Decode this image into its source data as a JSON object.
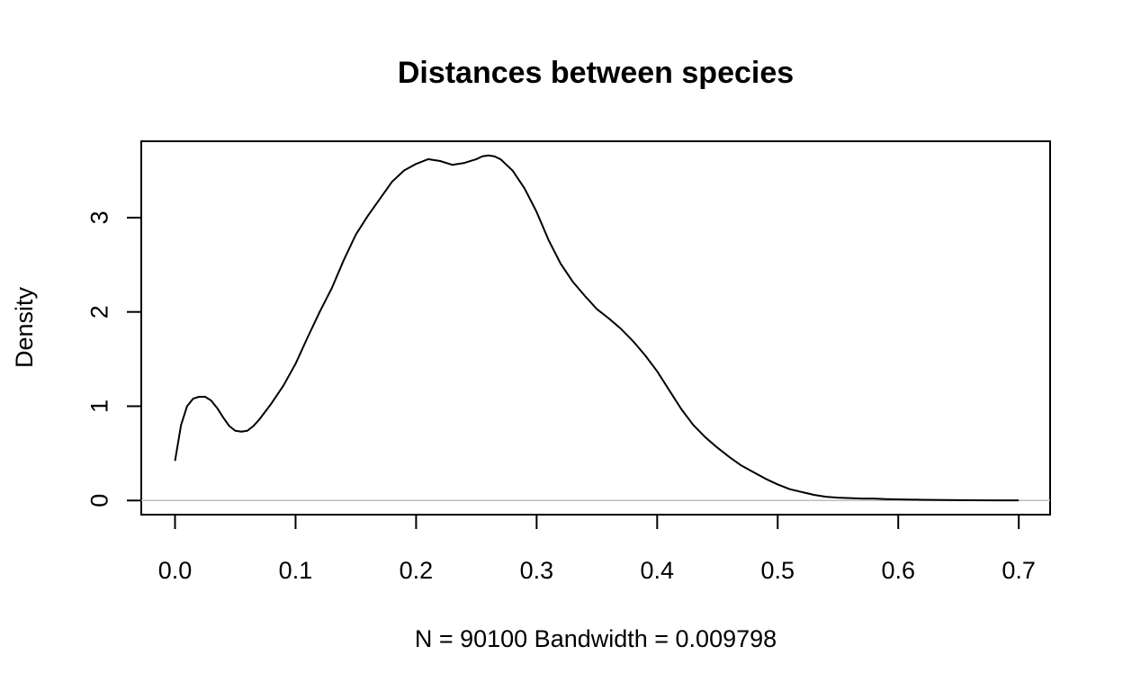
{
  "chart_data": {
    "type": "line",
    "title": "Distances between species",
    "xlabel": "N = 90100   Bandwidth = 0.009798",
    "ylabel": "Density",
    "xlim": [
      -0.028,
      0.726
    ],
    "ylim": [
      -0.15,
      3.81
    ],
    "x_ticks": [
      0.0,
      0.1,
      0.2,
      0.3,
      0.4,
      0.5,
      0.6,
      0.7
    ],
    "x_tick_labels": [
      "0.0",
      "0.1",
      "0.2",
      "0.3",
      "0.4",
      "0.5",
      "0.6",
      "0.7"
    ],
    "y_ticks": [
      0,
      1,
      2,
      3
    ],
    "y_tick_labels": [
      "0",
      "1",
      "2",
      "3"
    ],
    "zero_line": true,
    "grid": false,
    "series": [
      {
        "x": [
          0.0,
          0.005,
          0.01,
          0.015,
          0.02,
          0.025,
          0.03,
          0.035,
          0.04,
          0.045,
          0.05,
          0.055,
          0.06,
          0.065,
          0.07,
          0.08,
          0.09,
          0.1,
          0.11,
          0.12,
          0.13,
          0.14,
          0.15,
          0.16,
          0.17,
          0.18,
          0.19,
          0.2,
          0.21,
          0.22,
          0.23,
          0.24,
          0.25,
          0.255,
          0.26,
          0.265,
          0.27,
          0.275,
          0.28,
          0.29,
          0.3,
          0.31,
          0.32,
          0.33,
          0.34,
          0.35,
          0.36,
          0.37,
          0.38,
          0.39,
          0.4,
          0.41,
          0.42,
          0.43,
          0.44,
          0.45,
          0.46,
          0.47,
          0.48,
          0.49,
          0.5,
          0.51,
          0.52,
          0.53,
          0.54,
          0.55,
          0.56,
          0.57,
          0.58,
          0.59,
          0.6,
          0.62,
          0.64,
          0.66,
          0.68,
          0.7
        ],
        "y": [
          0.42,
          0.8,
          1.0,
          1.08,
          1.1,
          1.1,
          1.06,
          0.98,
          0.88,
          0.79,
          0.74,
          0.73,
          0.74,
          0.79,
          0.86,
          1.03,
          1.22,
          1.45,
          1.73,
          2.0,
          2.25,
          2.55,
          2.82,
          3.02,
          3.2,
          3.38,
          3.5,
          3.57,
          3.62,
          3.6,
          3.56,
          3.58,
          3.62,
          3.65,
          3.66,
          3.65,
          3.62,
          3.56,
          3.5,
          3.31,
          3.06,
          2.76,
          2.51,
          2.32,
          2.17,
          2.03,
          1.93,
          1.82,
          1.69,
          1.54,
          1.37,
          1.17,
          0.97,
          0.8,
          0.67,
          0.56,
          0.46,
          0.37,
          0.3,
          0.23,
          0.17,
          0.12,
          0.09,
          0.06,
          0.04,
          0.03,
          0.025,
          0.02,
          0.02,
          0.015,
          0.012,
          0.008,
          0.005,
          0.003,
          0.002,
          0.001
        ]
      }
    ]
  }
}
